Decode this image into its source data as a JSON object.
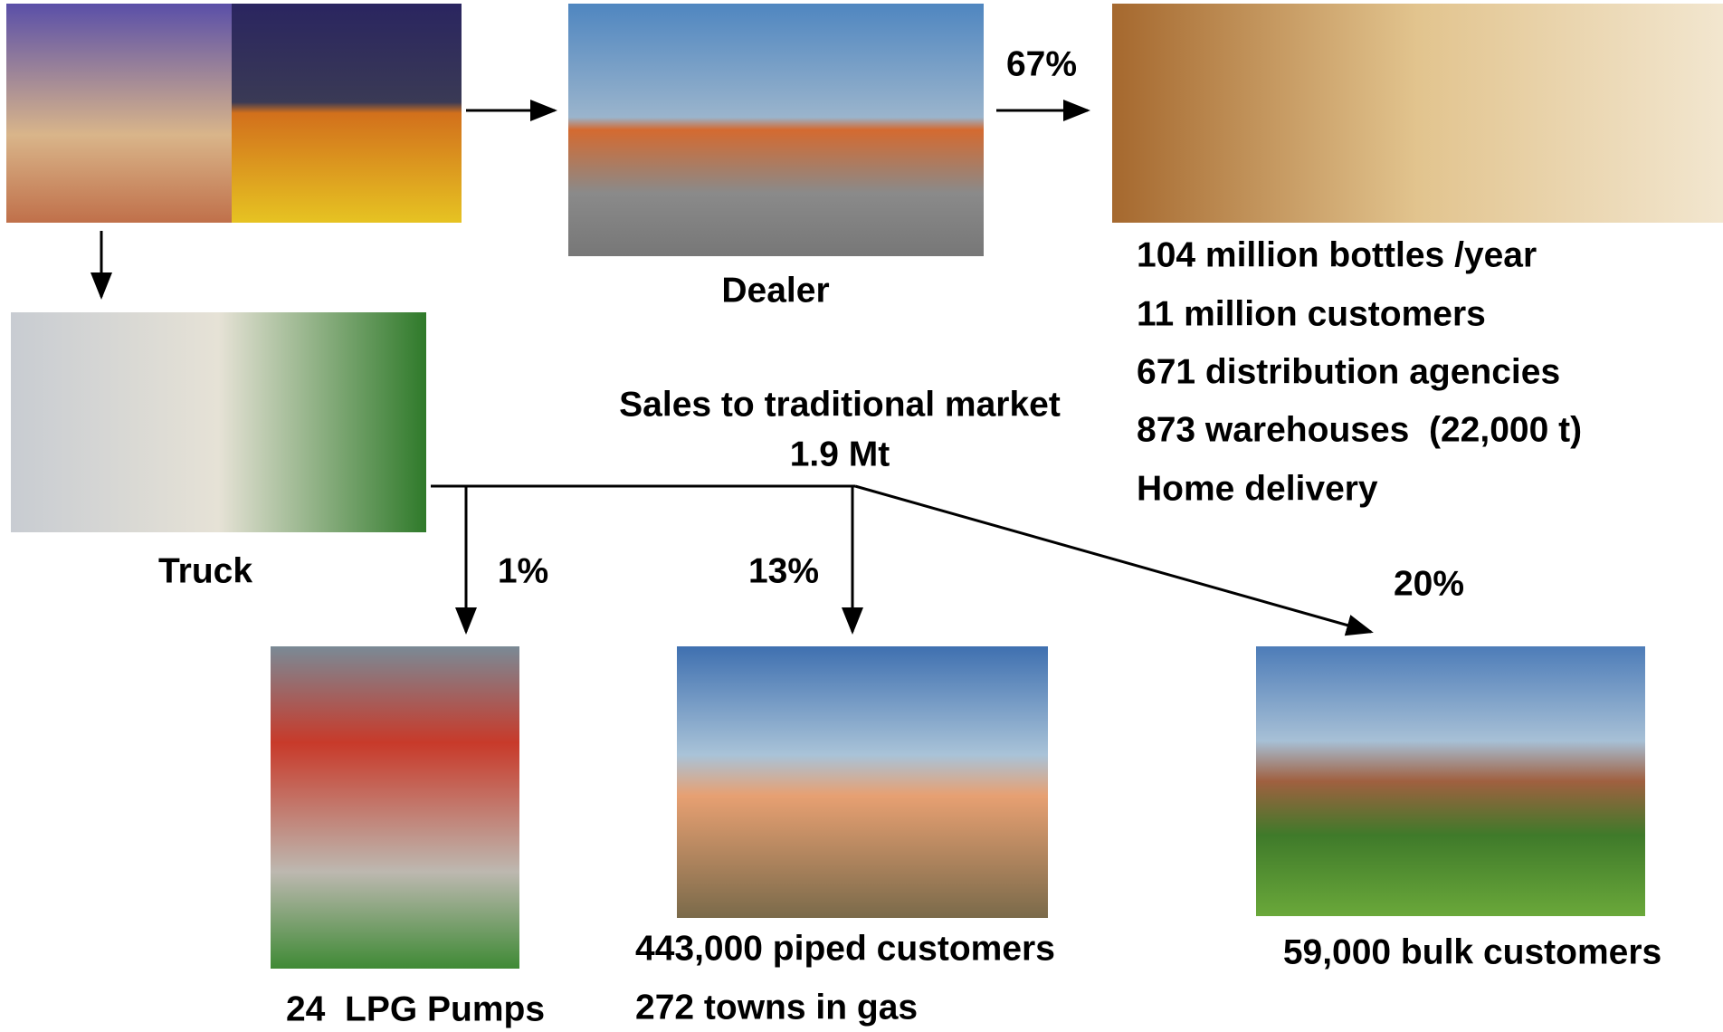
{
  "top": {
    "dealer_share": "67%",
    "dealer_label": "Dealer",
    "home_facts": [
      "104 million bottles /year",
      "11 million customers",
      "671 distribution agencies",
      "873 warehouses  (22,000 t)",
      "Home delivery"
    ]
  },
  "middle": {
    "truck_label": "Truck",
    "sales_title": "Sales to traditional market",
    "sales_amount": "1.9 Mt"
  },
  "branches": [
    {
      "share": "1%",
      "labels": [
        "24  LPG Pumps"
      ]
    },
    {
      "share": "13%",
      "labels": [
        "443,000 piped customers",
        "272 towns in gas"
      ]
    },
    {
      "share": "20%",
      "labels": [
        "59,000 bulk customers"
      ]
    }
  ]
}
